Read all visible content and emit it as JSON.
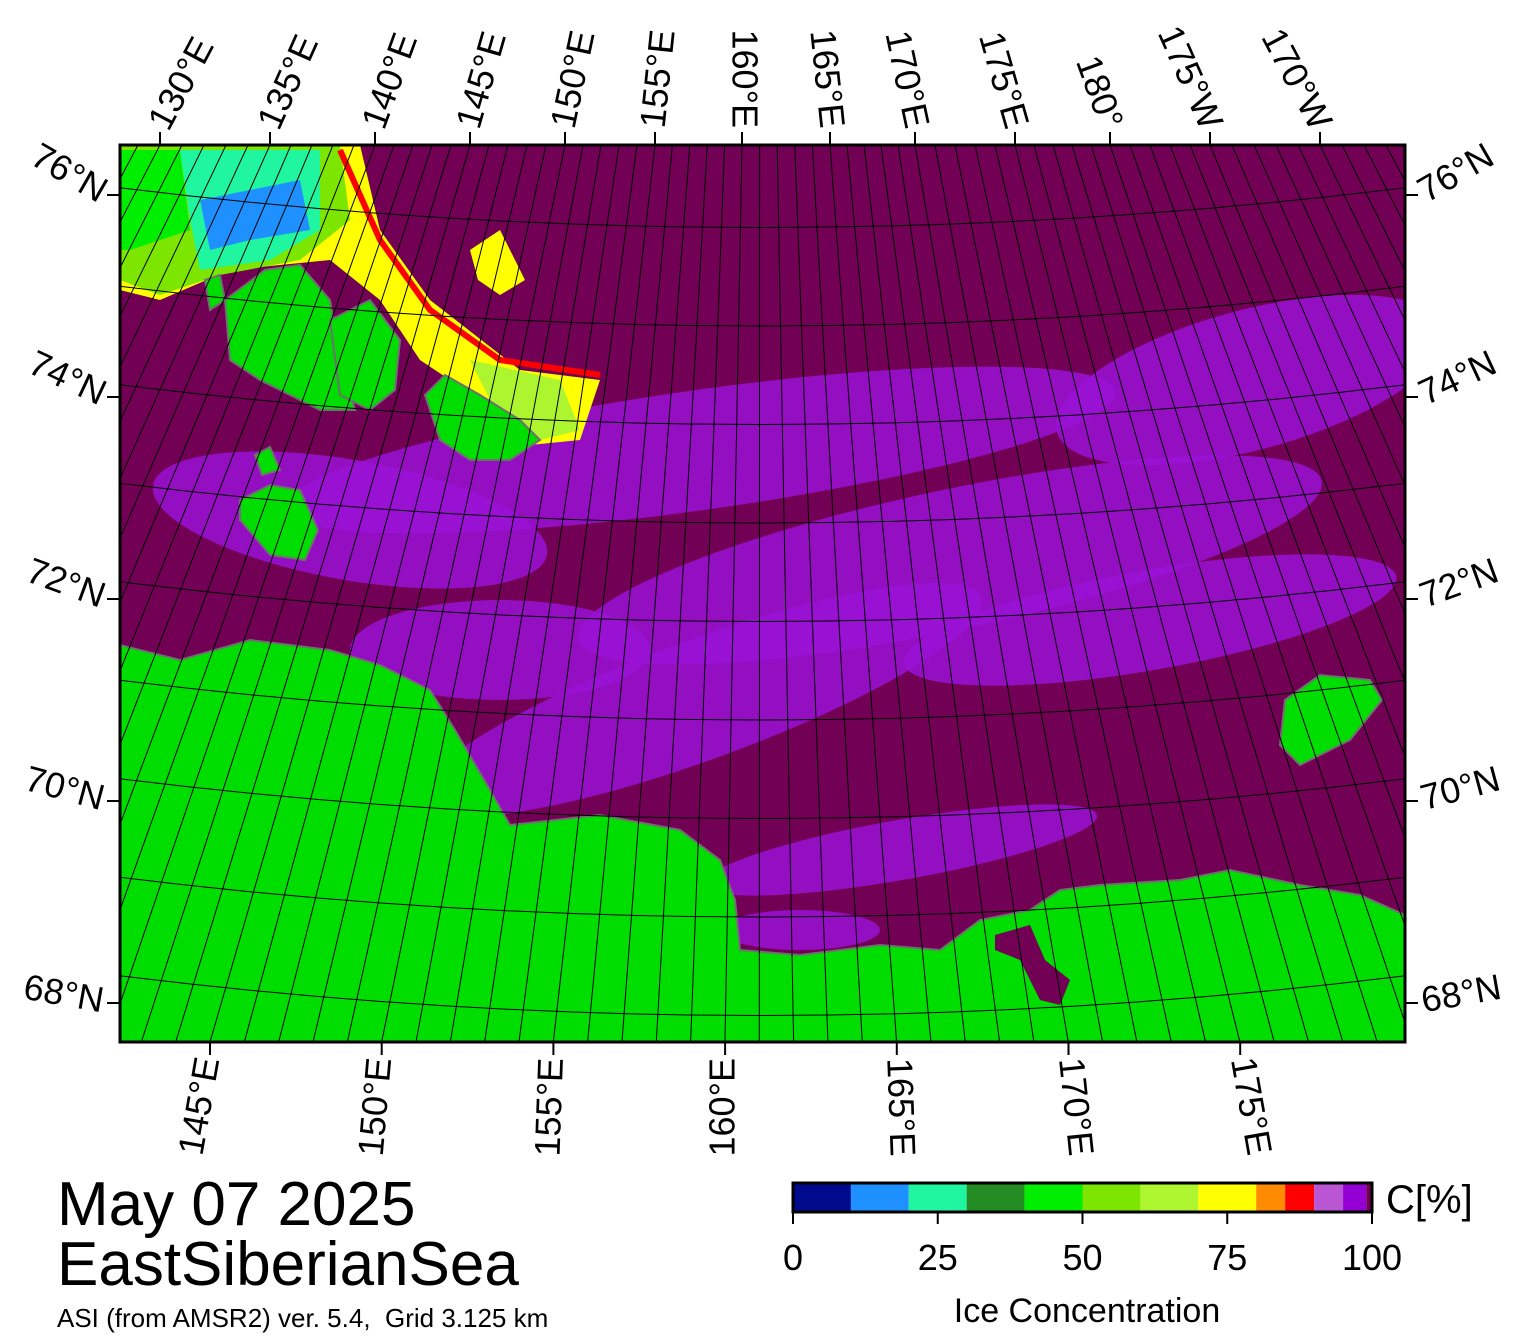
{
  "map": {
    "date": "May 07 2025",
    "region": "EastSiberianSea",
    "source": "ASI (from AMSR2) ver. 5.4,  Grid 3.125 km",
    "top_lon_labels": [
      "130°E",
      "135°E",
      "140°E",
      "145°E",
      "150°E",
      "155°E",
      "160°E",
      "165°E",
      "170°E",
      "175°E",
      "180°",
      "175°W",
      "170°W"
    ],
    "bottom_lon_labels": [
      "145°E",
      "150°E",
      "155°E",
      "160°E",
      "165°E",
      "170°E",
      "175°E"
    ],
    "lat_labels": [
      "76°N",
      "74°N",
      "72°N",
      "70°N",
      "68°N"
    ],
    "sea_color": "#720055",
    "thin_ice_color": "#9a12d6",
    "land_color": "#00dd00"
  },
  "colorbar": {
    "unit": "C[%]",
    "label": "Ice Concentration",
    "range": [
      0,
      100
    ],
    "ticks": [
      0,
      25,
      50,
      75,
      100
    ],
    "bins": [
      0,
      10,
      20,
      30,
      40,
      50,
      60,
      70,
      80,
      85,
      90,
      95,
      99,
      100
    ],
    "colors": [
      "#000a8c",
      "#1e90ff",
      "#20f5a0",
      "#228b22",
      "#00ee00",
      "#7ce600",
      "#adf52f",
      "#ffff00",
      "#ff8c00",
      "#ff0000",
      "#ba55d3",
      "#9400d3",
      "#720055"
    ]
  }
}
